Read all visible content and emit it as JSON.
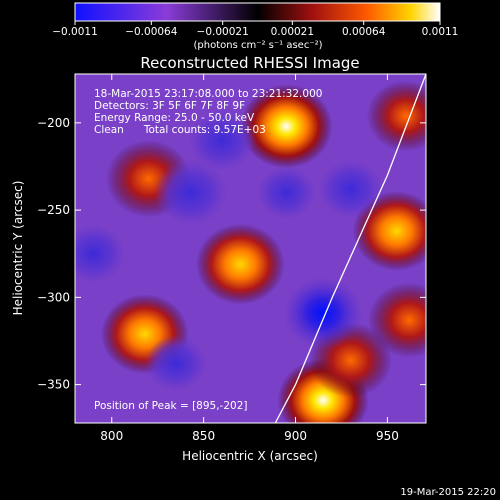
{
  "chart_data": {
    "type": "heatmap",
    "title": "Reconstructed RHESSI Image",
    "xlabel": "Heliocentric X (arcsec)",
    "ylabel": "Heliocentric Y (arcsec)",
    "xlim": [
      780,
      971
    ],
    "ylim": [
      -372,
      -172
    ],
    "xticks": [
      800,
      850,
      900,
      950
    ],
    "yticks": [
      -200,
      -250,
      -300,
      -350
    ],
    "colorbar": {
      "label": "(photons cm⁻² s⁻¹ asec⁻²)",
      "range": [
        -0.0011,
        0.0011
      ],
      "ticks": [
        "−0.0011",
        "−0.00064",
        "−0.00021",
        "0.00021",
        "0.00064",
        "0.0011"
      ],
      "tick_values": [
        -0.0011,
        -0.00064,
        -0.00021,
        0.00021,
        0.00064,
        0.0011
      ]
    },
    "info_lines": [
      "18-Mar-2015 23:17:08.000 to 23:21:32.000",
      "Detectors: 3F 5F 6F 7F 8F 9F",
      "Energy Range: 25.0 - 50.0 keV",
      "Clean      Total counts: 9.57E+03"
    ],
    "peak_text": "Position of Peak = [895,-202]",
    "sources": [
      {
        "x": 895,
        "y": -202,
        "value": 0.0011
      },
      {
        "x": 820,
        "y": -232,
        "value": 0.0008
      },
      {
        "x": 870,
        "y": -281,
        "value": 0.00095
      },
      {
        "x": 818,
        "y": -321,
        "value": 0.0009
      },
      {
        "x": 915,
        "y": -359,
        "value": 0.00105
      },
      {
        "x": 955,
        "y": -262,
        "value": 0.0009
      },
      {
        "x": 962,
        "y": -313,
        "value": 0.0007
      },
      {
        "x": 960,
        "y": -196,
        "value": 0.0005
      },
      {
        "x": 930,
        "y": -336,
        "value": 0.0007
      },
      {
        "x": 915,
        "y": -309,
        "value": -0.0011
      },
      {
        "x": 843,
        "y": -240,
        "value": -0.0009
      },
      {
        "x": 860,
        "y": -210,
        "value": -0.0007
      },
      {
        "x": 790,
        "y": -275,
        "value": -0.0006
      },
      {
        "x": 835,
        "y": -338,
        "value": -0.0005
      },
      {
        "x": 930,
        "y": -238,
        "value": -0.0006
      },
      {
        "x": 895,
        "y": -240,
        "value": -0.0004
      }
    ],
    "limb_curve": [
      [
        971,
        -172
      ],
      [
        950,
        -230
      ],
      [
        920,
        -300
      ],
      [
        900,
        -350
      ],
      [
        889,
        -372
      ]
    ]
  },
  "footer_date": "19-Mar-2015 22:20"
}
